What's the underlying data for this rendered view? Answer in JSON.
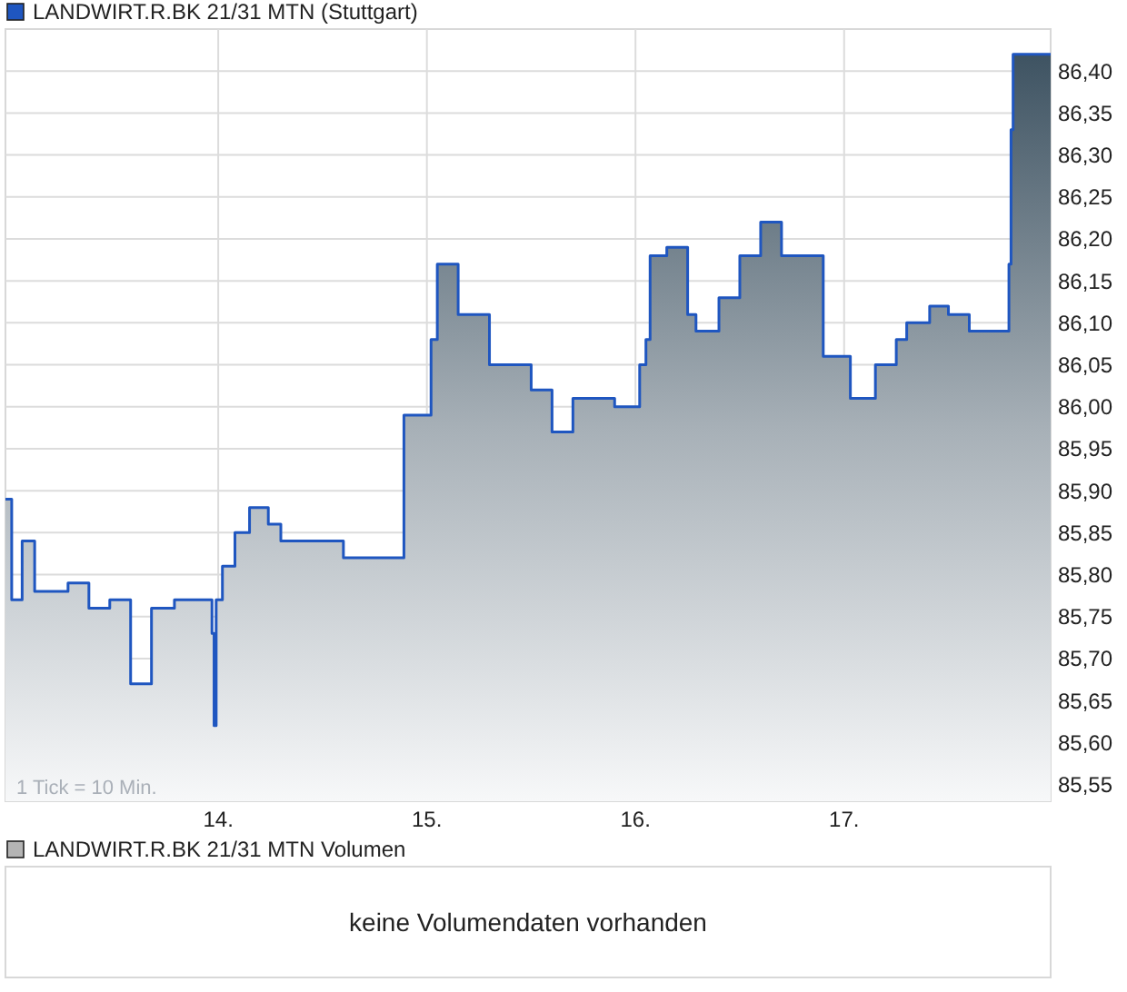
{
  "chart_data": [
    {
      "type": "area",
      "legend": "top left",
      "grid": true,
      "annotations": [
        "1 Tick = 10 Min."
      ],
      "xlim": [
        12.98,
        17.99
      ],
      "xticks": [
        {
          "value": 14,
          "label": "14."
        },
        {
          "value": 15,
          "label": "15."
        },
        {
          "value": 16,
          "label": "16."
        },
        {
          "value": 17,
          "label": "17."
        }
      ],
      "ylim": [
        85.53,
        86.45
      ],
      "yticks": [
        {
          "value": 85.55,
          "label": "85,55"
        },
        {
          "value": 85.6,
          "label": "85,60"
        },
        {
          "value": 85.65,
          "label": "85,65"
        },
        {
          "value": 85.7,
          "label": "85,70"
        },
        {
          "value": 85.75,
          "label": "85,75"
        },
        {
          "value": 85.8,
          "label": "85,80"
        },
        {
          "value": 85.85,
          "label": "85,85"
        },
        {
          "value": 85.9,
          "label": "85,90"
        },
        {
          "value": 85.95,
          "label": "85,95"
        },
        {
          "value": 86.0,
          "label": "86,00"
        },
        {
          "value": 86.05,
          "label": "86,05"
        },
        {
          "value": 86.1,
          "label": "86,10"
        },
        {
          "value": 86.15,
          "label": "86,15"
        },
        {
          "value": 86.2,
          "label": "86,20"
        },
        {
          "value": 86.25,
          "label": "86,25"
        },
        {
          "value": 86.3,
          "label": "86,30"
        },
        {
          "value": 86.35,
          "label": "86,35"
        },
        {
          "value": 86.4,
          "label": "86,40"
        }
      ],
      "series": [
        {
          "name": "LANDWIRT.R.BK 21/31 MTN (Stuttgart)",
          "color": "#1f56c0",
          "x": [
            12.98,
            13.01,
            13.01,
            13.06,
            13.06,
            13.12,
            13.12,
            13.28,
            13.28,
            13.38,
            13.38,
            13.48,
            13.48,
            13.58,
            13.58,
            13.68,
            13.68,
            13.79,
            13.79,
            13.97,
            13.97,
            13.98,
            13.98,
            13.99,
            13.99,
            14.02,
            14.02,
            14.08,
            14.08,
            14.15,
            14.15,
            14.24,
            14.24,
            14.3,
            14.3,
            14.6,
            14.6,
            14.89,
            14.89,
            15.02,
            15.02,
            15.05,
            15.05,
            15.15,
            15.15,
            15.3,
            15.3,
            15.5,
            15.5,
            15.6,
            15.6,
            15.7,
            15.7,
            15.9,
            15.9,
            16.02,
            16.02,
            16.05,
            16.05,
            16.07,
            16.07,
            16.15,
            16.15,
            16.25,
            16.25,
            16.29,
            16.29,
            16.4,
            16.4,
            16.5,
            16.5,
            16.6,
            16.6,
            16.7,
            16.7,
            16.9,
            16.9,
            17.03,
            17.03,
            17.15,
            17.15,
            17.25,
            17.25,
            17.3,
            17.3,
            17.41,
            17.41,
            17.5,
            17.5,
            17.6,
            17.6,
            17.79,
            17.79,
            17.8,
            17.8,
            17.81,
            17.81,
            17.99
          ],
          "values": [
            85.89,
            85.89,
            85.77,
            85.77,
            85.84,
            85.84,
            85.78,
            85.78,
            85.79,
            85.79,
            85.76,
            85.76,
            85.77,
            85.77,
            85.67,
            85.67,
            85.76,
            85.76,
            85.77,
            85.77,
            85.73,
            85.73,
            85.62,
            85.62,
            85.77,
            85.77,
            85.81,
            85.81,
            85.85,
            85.85,
            85.88,
            85.88,
            85.86,
            85.86,
            85.84,
            85.84,
            85.82,
            85.82,
            85.99,
            85.99,
            86.08,
            86.08,
            86.17,
            86.17,
            86.11,
            86.11,
            86.05,
            86.05,
            86.02,
            86.02,
            85.97,
            85.97,
            86.01,
            86.01,
            86.0,
            86.0,
            86.05,
            86.05,
            86.08,
            86.08,
            86.18,
            86.18,
            86.19,
            86.19,
            86.11,
            86.11,
            86.09,
            86.09,
            86.13,
            86.13,
            86.18,
            86.18,
            86.22,
            86.22,
            86.18,
            86.18,
            86.06,
            86.06,
            86.01,
            86.01,
            86.05,
            86.05,
            86.08,
            86.08,
            86.1,
            86.1,
            86.12,
            86.12,
            86.11,
            86.11,
            86.09,
            86.09,
            86.17,
            86.17,
            86.33,
            86.33,
            86.42,
            86.42
          ]
        }
      ]
    },
    {
      "type": "other",
      "title": "LANDWIRT.R.BK 21/31 MTN Volumen",
      "annotations": [
        "keine Volumendaten vorhanden"
      ]
    }
  ]
}
